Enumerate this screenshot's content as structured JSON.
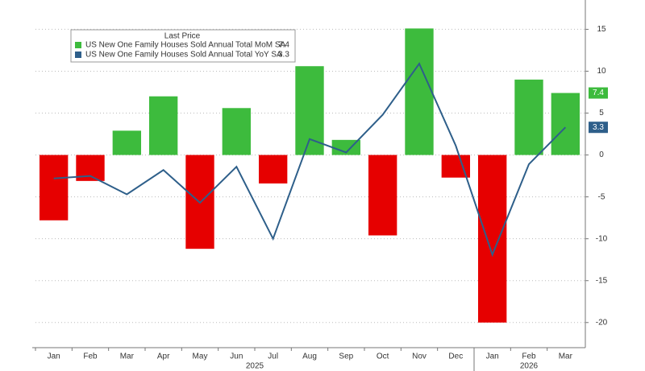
{
  "chart_data": {
    "type": "bar_line",
    "legend_title": "Last Price",
    "categories": [
      "Jan",
      "Feb",
      "Mar",
      "Apr",
      "May",
      "Jun",
      "Jul",
      "Aug",
      "Sep",
      "Oct",
      "Nov",
      "Dec",
      "Jan",
      "Feb",
      "Mar"
    ],
    "category_years": [
      "2025",
      "2025",
      "2025",
      "2025",
      "2025",
      "2025",
      "2025",
      "2025",
      "2025",
      "2025",
      "2025",
      "2025",
      "2026",
      "2026",
      "2026"
    ],
    "series": [
      {
        "name": "US New One Family Houses Sold Annual Total MoM SA",
        "type": "bar",
        "color": "#3dbb3d",
        "negative_color": "#e60000",
        "values": [
          -7.8,
          -3.1,
          2.9,
          7.0,
          -11.2,
          5.6,
          -3.4,
          10.6,
          1.8,
          -9.6,
          15.1,
          -2.7,
          -20.0,
          9.0,
          7.4
        ]
      },
      {
        "name": "US New One Family Houses Sold Annual Total YoY SA",
        "type": "line",
        "color": "#2e5f8a",
        "values": [
          -2.8,
          -2.5,
          -4.7,
          -1.8,
          -5.7,
          -1.4,
          -10.0,
          1.9,
          0.3,
          4.8,
          10.9,
          1.1,
          -11.9,
          -1.1,
          3.3
        ]
      }
    ],
    "ylim": [
      -23,
      18.5
    ],
    "yticks": [
      -20,
      -15,
      -10,
      -5,
      0,
      5,
      10,
      15
    ],
    "grid": true
  }
}
